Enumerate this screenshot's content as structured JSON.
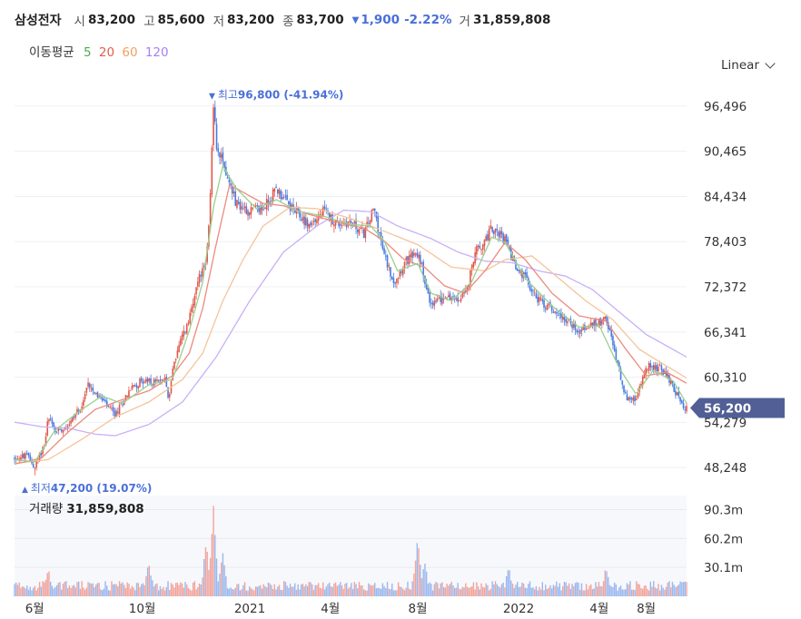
{
  "header": {
    "stock_name": "삼성전자",
    "open_label": "시",
    "open": "83,200",
    "high_label": "고",
    "high": "85,600",
    "low_label": "저",
    "low": "83,200",
    "close_label": "종",
    "close": "83,700",
    "change": "1,900",
    "change_pct": "-2.22%",
    "volume_label": "거",
    "volume": "31,859,808",
    "down_color": "#4a6fd8"
  },
  "moving_average": {
    "label": "이동평균",
    "periods": [
      {
        "period": "5",
        "color": "#4fa84f"
      },
      {
        "period": "20",
        "color": "#e05d4e"
      },
      {
        "period": "60",
        "color": "#f0a060"
      },
      {
        "period": "120",
        "color": "#a97ff0"
      }
    ]
  },
  "scale_toggle": "Linear",
  "volume_panel": {
    "label": "거래량",
    "value": "31,859,808"
  },
  "chart_data": {
    "type": "line",
    "series_kind": "candlestick",
    "ylim": [
      45233,
      99511
    ],
    "y_ticks": [
      "96,496",
      "90,465",
      "84,434",
      "78,403",
      "72,372",
      "66,341",
      "60,310",
      "54,279",
      "48,248"
    ],
    "y_tick_values": [
      96496,
      90465,
      84434,
      78403,
      72372,
      66341,
      60310,
      54279,
      48248
    ],
    "x_ticks": [
      "6월",
      "10월",
      "2021",
      "4월",
      "8월",
      "2022",
      "4월",
      "8월"
    ],
    "x_tick_positions": [
      0.03,
      0.19,
      0.35,
      0.47,
      0.6,
      0.75,
      0.87,
      0.94
    ],
    "current_price": {
      "label": "56,200",
      "value": 56200
    },
    "high_annotation": {
      "label": "최고",
      "value": "96,800",
      "pct": "(-41.94%)",
      "price": 96800,
      "position": 0.296
    },
    "low_annotation": {
      "label": "최저",
      "value": "47,200",
      "pct": "(19.07%)",
      "price": 47200,
      "position": 0.03
    },
    "price_path": [
      [
        0.0,
        49500
      ],
      [
        0.02,
        49800
      ],
      [
        0.03,
        48200
      ],
      [
        0.045,
        51500
      ],
      [
        0.05,
        55400
      ],
      [
        0.06,
        53000
      ],
      [
        0.08,
        54000
      ],
      [
        0.1,
        56500
      ],
      [
        0.11,
        59500
      ],
      [
        0.13,
        57200
      ],
      [
        0.15,
        55200
      ],
      [
        0.17,
        58500
      ],
      [
        0.19,
        59900
      ],
      [
        0.21,
        59500
      ],
      [
        0.225,
        60200
      ],
      [
        0.23,
        57000
      ],
      [
        0.235,
        61500
      ],
      [
        0.245,
        64500
      ],
      [
        0.26,
        68000
      ],
      [
        0.275,
        73500
      ],
      [
        0.285,
        75400
      ],
      [
        0.29,
        82000
      ],
      [
        0.296,
        96800
      ],
      [
        0.3,
        91500
      ],
      [
        0.315,
        87500
      ],
      [
        0.33,
        83500
      ],
      [
        0.35,
        82500
      ],
      [
        0.37,
        82800
      ],
      [
        0.39,
        85500
      ],
      [
        0.41,
        83000
      ],
      [
        0.44,
        80500
      ],
      [
        0.46,
        82500
      ],
      [
        0.48,
        80800
      ],
      [
        0.5,
        81000
      ],
      [
        0.52,
        79500
      ],
      [
        0.535,
        82800
      ],
      [
        0.55,
        76500
      ],
      [
        0.565,
        73000
      ],
      [
        0.58,
        75500
      ],
      [
        0.6,
        77000
      ],
      [
        0.62,
        70000
      ],
      [
        0.64,
        71000
      ],
      [
        0.66,
        70500
      ],
      [
        0.675,
        72500
      ],
      [
        0.685,
        77000
      ],
      [
        0.7,
        78500
      ],
      [
        0.71,
        80300
      ],
      [
        0.73,
        78500
      ],
      [
        0.745,
        75000
      ],
      [
        0.76,
        73500
      ],
      [
        0.78,
        70500
      ],
      [
        0.8,
        69500
      ],
      [
        0.82,
        68000
      ],
      [
        0.84,
        66500
      ],
      [
        0.86,
        67300
      ],
      [
        0.88,
        68000
      ],
      [
        0.895,
        63000
      ],
      [
        0.91,
        57500
      ],
      [
        0.925,
        57200
      ],
      [
        0.94,
        61800
      ],
      [
        0.96,
        61500
      ],
      [
        0.975,
        60000
      ],
      [
        0.99,
        57000
      ],
      [
        1.0,
        56200
      ]
    ],
    "ma5": [
      [
        0.0,
        49300
      ],
      [
        0.03,
        49000
      ],
      [
        0.06,
        53200
      ],
      [
        0.1,
        56000
      ],
      [
        0.13,
        57800
      ],
      [
        0.16,
        56800
      ],
      [
        0.2,
        59300
      ],
      [
        0.235,
        60000
      ],
      [
        0.26,
        66500
      ],
      [
        0.28,
        73000
      ],
      [
        0.296,
        83000
      ],
      [
        0.31,
        88500
      ],
      [
        0.33,
        85500
      ],
      [
        0.36,
        82800
      ],
      [
        0.39,
        84000
      ],
      [
        0.42,
        82500
      ],
      [
        0.46,
        81800
      ],
      [
        0.5,
        80700
      ],
      [
        0.53,
        80500
      ],
      [
        0.55,
        78500
      ],
      [
        0.57,
        74500
      ],
      [
        0.6,
        75500
      ],
      [
        0.62,
        71500
      ],
      [
        0.65,
        70500
      ],
      [
        0.68,
        73000
      ],
      [
        0.71,
        79000
      ],
      [
        0.73,
        78300
      ],
      [
        0.76,
        73500
      ],
      [
        0.8,
        69800
      ],
      [
        0.84,
        67000
      ],
      [
        0.87,
        67200
      ],
      [
        0.9,
        61500
      ],
      [
        0.925,
        58000
      ],
      [
        0.95,
        61200
      ],
      [
        0.98,
        59800
      ],
      [
        1.0,
        56800
      ]
    ],
    "ma20": [
      [
        0.0,
        48700
      ],
      [
        0.04,
        49500
      ],
      [
        0.08,
        53000
      ],
      [
        0.12,
        56000
      ],
      [
        0.16,
        57300
      ],
      [
        0.2,
        58500
      ],
      [
        0.235,
        60500
      ],
      [
        0.26,
        63500
      ],
      [
        0.28,
        69500
      ],
      [
        0.3,
        78000
      ],
      [
        0.32,
        86000
      ],
      [
        0.34,
        85000
      ],
      [
        0.37,
        83500
      ],
      [
        0.4,
        83200
      ],
      [
        0.44,
        82000
      ],
      [
        0.48,
        81000
      ],
      [
        0.52,
        80200
      ],
      [
        0.55,
        78500
      ],
      [
        0.58,
        76000
      ],
      [
        0.61,
        75000
      ],
      [
        0.64,
        72500
      ],
      [
        0.67,
        71500
      ],
      [
        0.7,
        74500
      ],
      [
        0.73,
        78300
      ],
      [
        0.76,
        76000
      ],
      [
        0.8,
        71500
      ],
      [
        0.84,
        68500
      ],
      [
        0.88,
        67800
      ],
      [
        0.91,
        64000
      ],
      [
        0.94,
        60500
      ],
      [
        0.97,
        61000
      ],
      [
        1.0,
        59500
      ]
    ],
    "ma60": [
      [
        0.0,
        48800
      ],
      [
        0.05,
        49300
      ],
      [
        0.1,
        52000
      ],
      [
        0.15,
        55000
      ],
      [
        0.2,
        57000
      ],
      [
        0.25,
        60000
      ],
      [
        0.28,
        63500
      ],
      [
        0.31,
        70500
      ],
      [
        0.34,
        76000
      ],
      [
        0.37,
        80500
      ],
      [
        0.41,
        83000
      ],
      [
        0.45,
        82800
      ],
      [
        0.5,
        81500
      ],
      [
        0.55,
        79800
      ],
      [
        0.6,
        78000
      ],
      [
        0.65,
        75000
      ],
      [
        0.7,
        74500
      ],
      [
        0.73,
        76000
      ],
      [
        0.77,
        76500
      ],
      [
        0.81,
        73500
      ],
      [
        0.85,
        70500
      ],
      [
        0.89,
        68000
      ],
      [
        0.93,
        64000
      ],
      [
        0.97,
        61800
      ],
      [
        1.0,
        60200
      ]
    ],
    "ma120": [
      [
        0.0,
        54300
      ],
      [
        0.04,
        53700
      ],
      [
        0.08,
        53500
      ],
      [
        0.12,
        52700
      ],
      [
        0.15,
        52500
      ],
      [
        0.2,
        54000
      ],
      [
        0.25,
        57000
      ],
      [
        0.3,
        63000
      ],
      [
        0.35,
        70500
      ],
      [
        0.4,
        77000
      ],
      [
        0.45,
        80500
      ],
      [
        0.49,
        82600
      ],
      [
        0.53,
        82400
      ],
      [
        0.57,
        80500
      ],
      [
        0.62,
        78800
      ],
      [
        0.66,
        77000
      ],
      [
        0.7,
        75800
      ],
      [
        0.74,
        75600
      ],
      [
        0.78,
        74500
      ],
      [
        0.82,
        73800
      ],
      [
        0.86,
        72000
      ],
      [
        0.9,
        69000
      ],
      [
        0.94,
        66000
      ],
      [
        0.97,
        64500
      ],
      [
        1.0,
        63000
      ]
    ],
    "volume_ticks": [
      "90.3m",
      "60.2m",
      "30.1m"
    ],
    "volume_tick_values": [
      90.3,
      60.2,
      30.1
    ],
    "volume_max_m": 105,
    "volume_spikes": [
      [
        0.05,
        25
      ],
      [
        0.2,
        32
      ],
      [
        0.285,
        55
      ],
      [
        0.296,
        90
      ],
      [
        0.31,
        45
      ],
      [
        0.6,
        60
      ],
      [
        0.61,
        35
      ],
      [
        0.735,
        28
      ],
      [
        0.88,
        27
      ]
    ]
  }
}
